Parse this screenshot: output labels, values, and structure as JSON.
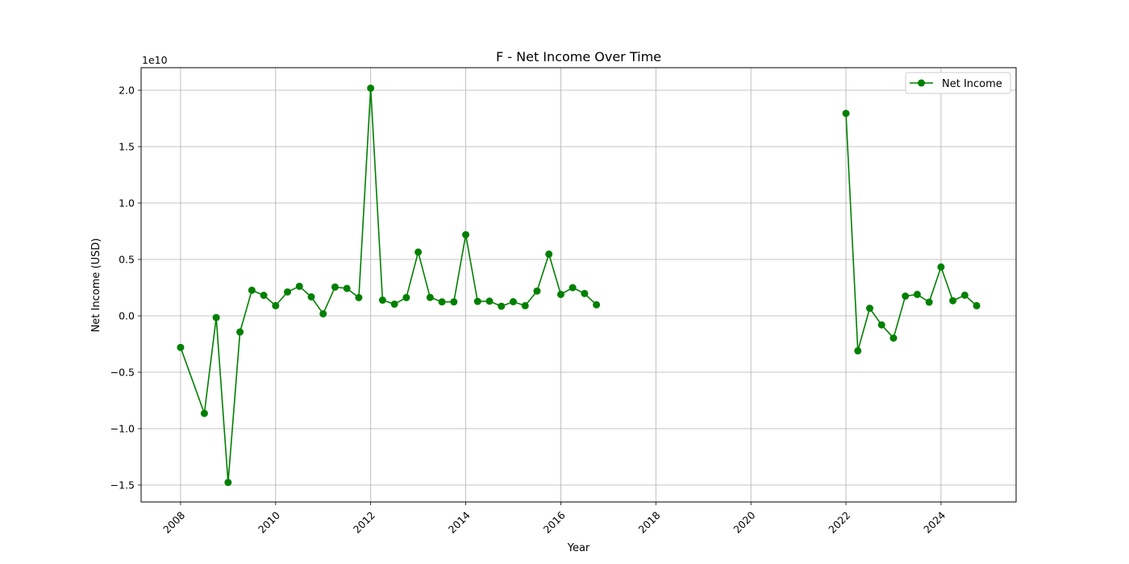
{
  "chart_data": {
    "type": "line",
    "title": "F - Net Income Over Time",
    "xlabel": "Year",
    "ylabel": "Net Income (USD)",
    "y_offset_label": "1e10",
    "y_scale": 10000000000,
    "ylim": [
      -1.65,
      2.2
    ],
    "xlim": [
      2007.17,
      2025.58
    ],
    "grid": true,
    "legend_position": "top-right",
    "marker": "circle",
    "x_ticks": [
      2008,
      2010,
      2012,
      2014,
      2016,
      2018,
      2020,
      2022,
      2024
    ],
    "x_tick_labels": [
      "2008",
      "2010",
      "2012",
      "2014",
      "2016",
      "2018",
      "2020",
      "2022",
      "2024"
    ],
    "y_ticks": [
      -1.5,
      -1.0,
      -0.5,
      0.0,
      0.5,
      1.0,
      1.5,
      2.0
    ],
    "y_tick_labels": [
      "−1.5",
      "−1.0",
      "−0.5",
      "0.0",
      "0.5",
      "1.0",
      "1.5",
      "2.0"
    ],
    "series": [
      {
        "name": "Net Income",
        "color": "#008000",
        "segments": [
          {
            "x": [
              "2008-01",
              "2008-07",
              "2008-10",
              "2009-01",
              "2009-04",
              "2009-07",
              "2009-10",
              "2010-01",
              "2010-04",
              "2010-07",
              "2010-10",
              "2011-01",
              "2011-04",
              "2011-07",
              "2011-10",
              "2012-01",
              "2012-04",
              "2012-07",
              "2012-10",
              "2013-01",
              "2013-04",
              "2013-07",
              "2013-10",
              "2014-01",
              "2014-04",
              "2014-07",
              "2014-10",
              "2015-01",
              "2015-04",
              "2015-07",
              "2015-10",
              "2016-01",
              "2016-04",
              "2016-07",
              "2016-10"
            ],
            "values": [
              -0.28,
              -0.865,
              -0.015,
              -1.477,
              -0.143,
              0.227,
              0.182,
              0.09,
              0.212,
              0.262,
              0.168,
              0.018,
              0.255,
              0.243,
              0.162,
              2.018,
              0.139,
              0.104,
              0.162,
              0.565,
              0.163,
              0.124,
              0.124,
              0.719,
              0.128,
              0.13,
              0.085,
              0.125,
              0.09,
              0.22,
              0.547,
              0.19,
              0.25,
              0.198,
              0.098
            ]
          },
          {
            "x": [
              "2022-01",
              "2022-04",
              "2022-07",
              "2022-10",
              "2023-01",
              "2023-04",
              "2023-07",
              "2023-10",
              "2024-01",
              "2024-04",
              "2024-07",
              "2024-10"
            ],
            "values": [
              1.795,
              -0.31,
              0.067,
              -0.08,
              -0.197,
              0.175,
              0.19,
              0.121,
              0.433,
              0.134,
              0.183,
              0.09
            ]
          }
        ]
      }
    ]
  }
}
